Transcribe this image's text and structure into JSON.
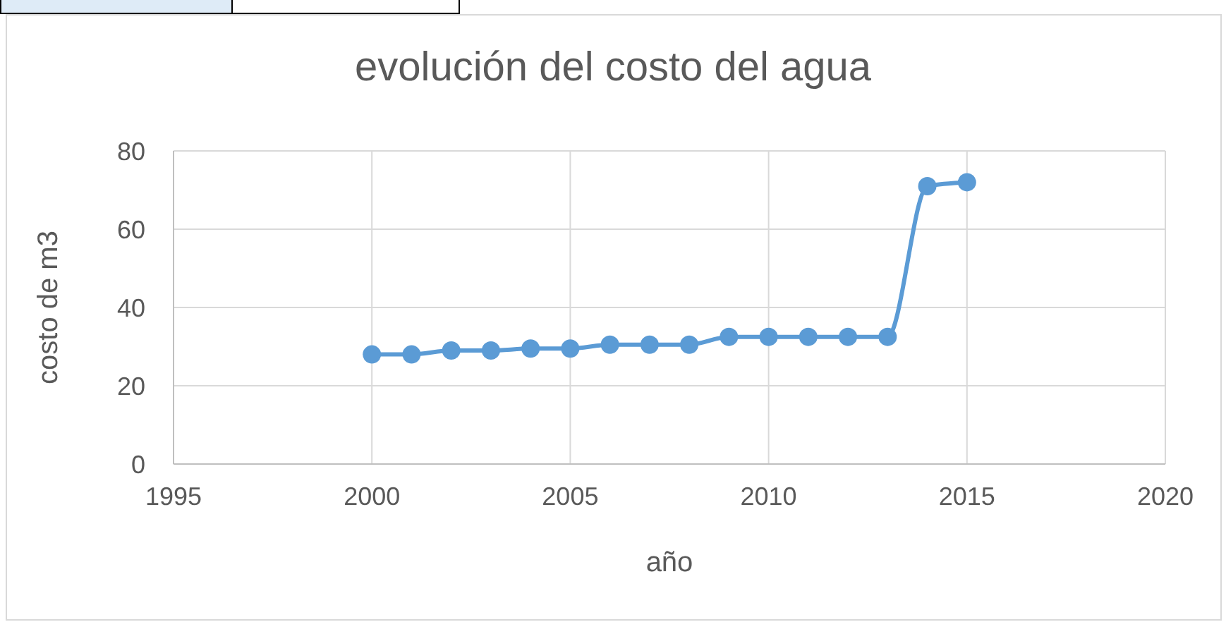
{
  "chart_data": {
    "type": "line",
    "title": "evolución del costo del agua",
    "xlabel": "año",
    "ylabel": "costo de m3",
    "x": [
      2000,
      2001,
      2002,
      2003,
      2004,
      2005,
      2006,
      2007,
      2008,
      2009,
      2010,
      2011,
      2012,
      2013,
      2014,
      2015
    ],
    "series": [
      {
        "color": "#5b9bd5",
        "values": [
          28,
          28,
          29,
          29,
          29.5,
          29.5,
          30.5,
          30.5,
          30.5,
          32.5,
          32.5,
          32.5,
          32.5,
          32.5,
          71,
          72
        ]
      }
    ],
    "xlim": [
      1995,
      2020
    ],
    "xticks": [
      1995,
      2000,
      2005,
      2010,
      2015,
      2020
    ],
    "ylim": [
      0,
      80
    ],
    "yticks": [
      0,
      20,
      40,
      60,
      80
    ],
    "grid": true,
    "legend": false,
    "marker": "circle",
    "line_style": "solid"
  }
}
